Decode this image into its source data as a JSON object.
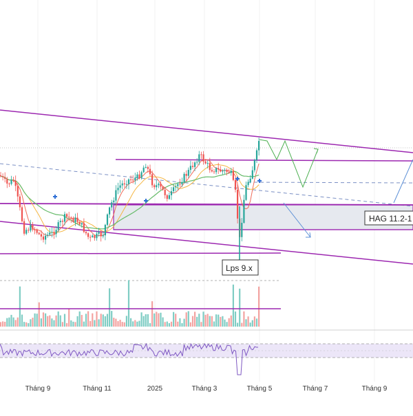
{
  "chart_data": {
    "type": "candlestick",
    "title": "",
    "xlabel": "",
    "ylabel": "",
    "x_ticks": [
      "Tháng 9",
      "Tháng 11",
      "2025",
      "Tháng 3",
      "Tháng 5",
      "Tháng 7",
      "Tháng 9"
    ],
    "annotations": [
      {
        "name": "hag-zone-label",
        "text": "HAG 11.2-1"
      },
      {
        "name": "lps-label",
        "text": "Lps 9.x"
      }
    ],
    "colors": {
      "up": "#26a69a",
      "down": "#ef5350",
      "trendline": "#9c27b0",
      "ma_fast": "#ef6c5a",
      "ma_mid": "#f5b642",
      "ma_slow": "#66bb6a",
      "rsi": "#7e57c2",
      "projection": "#4caf50",
      "arrow": "#5b8fd6",
      "zone": "#e6e9ef"
    },
    "panels": [
      "price",
      "volume",
      "rsi"
    ],
    "grid": false
  }
}
